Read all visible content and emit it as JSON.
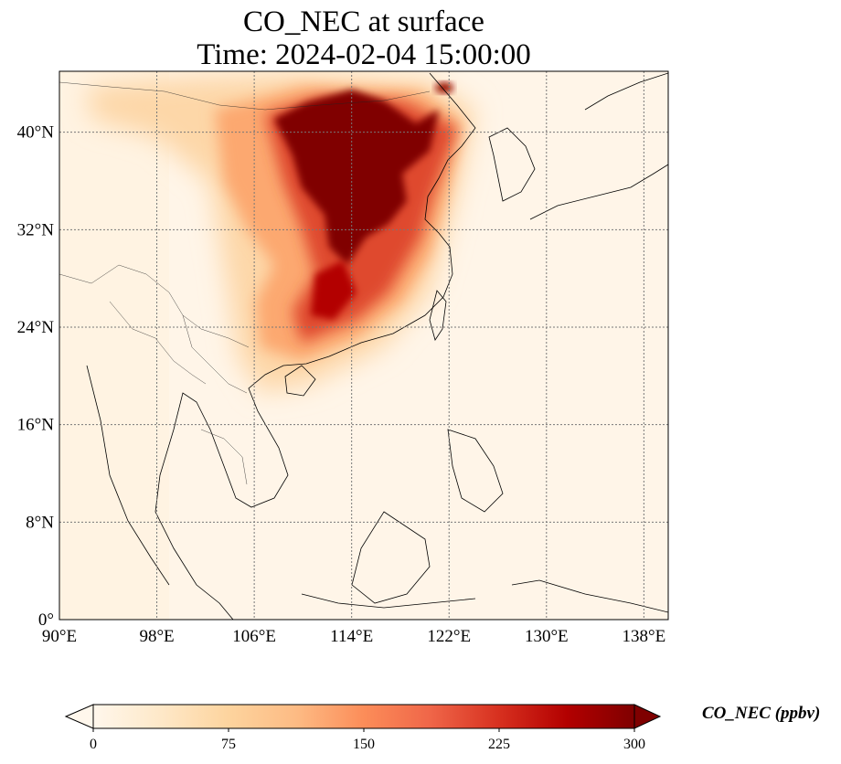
{
  "title": {
    "line1": "CO_NEC at surface",
    "line2": "Time: 2024-02-04 15:00:00"
  },
  "map": {
    "extent": {
      "lon": [
        90,
        140
      ],
      "lat": [
        0,
        45
      ]
    },
    "x_ticks": [
      {
        "value": 90,
        "label": "90°E"
      },
      {
        "value": 98,
        "label": "98°E"
      },
      {
        "value": 106,
        "label": "106°E"
      },
      {
        "value": 114,
        "label": "114°E"
      },
      {
        "value": 122,
        "label": "122°E"
      },
      {
        "value": 130,
        "label": "130°E"
      },
      {
        "value": 138,
        "label": "138°E"
      }
    ],
    "y_ticks": [
      {
        "value": 0,
        "label": "0°"
      },
      {
        "value": 8,
        "label": "8°N"
      },
      {
        "value": 16,
        "label": "16°N"
      },
      {
        "value": 24,
        "label": "24°N"
      },
      {
        "value": 32,
        "label": "32°N"
      },
      {
        "value": 40,
        "label": "40°N"
      }
    ],
    "gridlines": true,
    "colormap": "OrRd"
  },
  "colorbar": {
    "label": "CO_NEC (ppbv)",
    "min": 0,
    "max": 300,
    "extend": "both",
    "ticks": [
      {
        "value": 0,
        "label": "0"
      },
      {
        "value": 75,
        "label": "75"
      },
      {
        "value": 150,
        "label": "150"
      },
      {
        "value": 225,
        "label": "225"
      },
      {
        "value": 300,
        "label": "300"
      }
    ],
    "colors": [
      "#fff7ec",
      "#fee8c8",
      "#fdd49e",
      "#fdbb84",
      "#fc8d59",
      "#ef6548",
      "#d7301f",
      "#b30000",
      "#7f0000"
    ]
  }
}
